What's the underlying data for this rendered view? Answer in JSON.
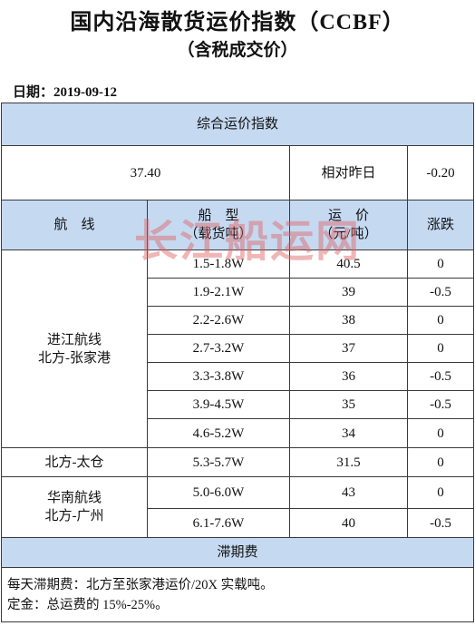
{
  "header": {
    "title": "国内沿海散货运价指数（CCBF）",
    "subtitle": "（含税成交价）",
    "date": "日期：2019-09-12"
  },
  "watermark": "长江船运网",
  "table": {
    "index_title": "综合运价指数",
    "index_value": "37.40",
    "change_label": "相对昨日",
    "change_value": "-0.20",
    "columns": [
      {
        "label": "航　线"
      },
      {
        "label": "船　型",
        "sub": "（载货吨）"
      },
      {
        "label": "运　价",
        "sub": "（元/吨）"
      },
      {
        "label": "涨跌"
      }
    ],
    "routes": [
      {
        "name": [
          "进江航线",
          "北方-张家港"
        ],
        "rows": [
          [
            "1.5-1.8W",
            "40.5",
            "0"
          ],
          [
            "1.9-2.1W",
            "39",
            "-0.5"
          ],
          [
            "2.2-2.6W",
            "38",
            "0"
          ],
          [
            "2.7-3.2W",
            "37",
            "0"
          ],
          [
            "3.3-3.8W",
            "36",
            "-0.5"
          ],
          [
            "3.9-4.5W",
            "35",
            "-0.5"
          ],
          [
            "4.6-5.2W",
            "34",
            "0"
          ]
        ]
      },
      {
        "name": [
          "北方-太仓"
        ],
        "rows": [
          [
            "5.3-5.7W",
            "31.5",
            "0"
          ]
        ]
      },
      {
        "name": [
          "华南航线",
          "北方-广州"
        ],
        "rows": [
          [
            "5.0-6.0W",
            "43",
            "0"
          ],
          [
            "6.1-7.6W",
            "40",
            "-0.5"
          ]
        ]
      }
    ],
    "fee_title": "滞期费",
    "notes": [
      "每天滞期费：北方至张家港运价/20X 实载吨。",
      "定金：总运费的 15%-25%。"
    ]
  }
}
